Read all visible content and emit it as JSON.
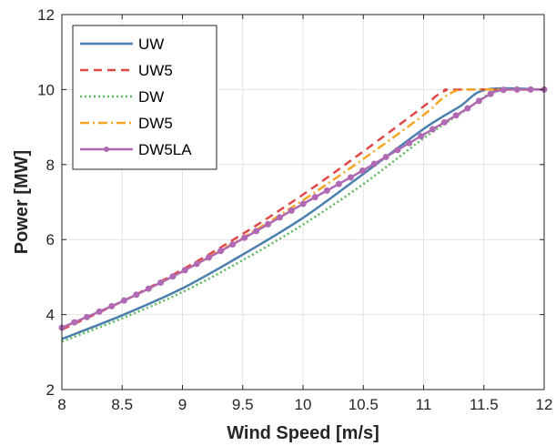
{
  "chart_data": {
    "type": "line",
    "title": "",
    "xlabel": "Wind Speed [m/s]",
    "ylabel": "Power [MW]",
    "xlim": [
      8,
      12
    ],
    "ylim": [
      2,
      12
    ],
    "xticks": [
      8,
      8.5,
      9,
      9.5,
      10,
      10.5,
      11,
      11.5,
      12
    ],
    "xtick_labels": [
      "8",
      "8.5",
      "9",
      "9.5",
      "10",
      "10.5",
      "11",
      "11.5",
      "12"
    ],
    "yticks": [
      2,
      4,
      6,
      8,
      10,
      12
    ],
    "ytick_labels": [
      "2",
      "4",
      "6",
      "8",
      "10",
      "12"
    ],
    "grid": true,
    "legend_position": "top-left",
    "series": [
      {
        "name": "UW",
        "color": "#4a7fae",
        "style": "solid",
        "x": [
          8,
          8.5,
          9,
          9.5,
          10,
          10.5,
          11,
          11.3,
          11.52,
          12
        ],
        "y": [
          3.35,
          3.98,
          4.7,
          5.6,
          6.58,
          7.75,
          8.95,
          9.55,
          10.0,
          10.0
        ]
      },
      {
        "name": "UW5",
        "color": "#e04747",
        "style": "dashed",
        "x": [
          8,
          8.5,
          9,
          9.5,
          10,
          10.5,
          11,
          11.1,
          11.18,
          11.25,
          12
        ],
        "y": [
          3.6,
          4.35,
          5.2,
          6.15,
          7.2,
          8.35,
          9.55,
          9.82,
          9.97,
          10.0,
          10.0
        ]
      },
      {
        "name": "DW",
        "color": "#5cb85c",
        "style": "dotted",
        "x": [
          8,
          8.5,
          9,
          9.5,
          10,
          10.5,
          11,
          11.3,
          11.55,
          11.63,
          12
        ],
        "y": [
          3.28,
          3.9,
          4.6,
          5.45,
          6.4,
          7.48,
          8.7,
          9.35,
          9.9,
          10.0,
          10.0
        ]
      },
      {
        "name": "DW5",
        "color": "#f5a623",
        "style": "dashdot",
        "x": [
          8,
          8.5,
          9,
          9.5,
          10,
          10.5,
          11,
          11.15,
          11.27,
          11.35,
          12
        ],
        "y": [
          3.65,
          4.35,
          5.15,
          6.05,
          7.05,
          8.15,
          9.32,
          9.75,
          9.97,
          10.0,
          10.0
        ]
      },
      {
        "name": "DW5LA",
        "color": "#b06ab3",
        "style": "solid-marker",
        "x": [
          8,
          8.5,
          9,
          9.5,
          10,
          10.5,
          11,
          11.3,
          11.5,
          11.6,
          11.7,
          11.8,
          12
        ],
        "y": [
          3.65,
          4.35,
          5.15,
          6.02,
          6.95,
          7.85,
          8.8,
          9.37,
          9.78,
          9.95,
          10.0,
          10.0,
          10.0
        ]
      }
    ]
  }
}
